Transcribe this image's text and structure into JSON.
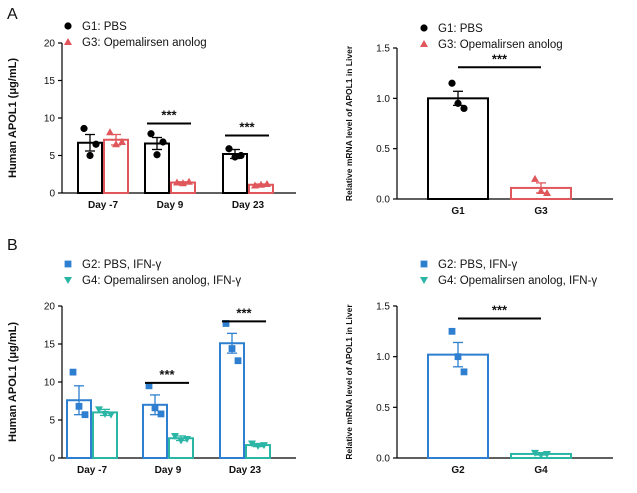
{
  "figure": {
    "panel_labels": [
      "A",
      "B"
    ]
  },
  "chart_data": [
    {
      "id": "A-left",
      "type": "bar",
      "ylabel": "Human APOL1 (μg/mL)",
      "ylim": [
        0,
        20
      ],
      "yticks": [
        0,
        5,
        10,
        15,
        20
      ],
      "categories": [
        "Day -7",
        "Day 9",
        "Day 23"
      ],
      "series": [
        {
          "name": "G1: PBS",
          "color": "#000000",
          "marker": "circle",
          "values": [
            6.7,
            6.6,
            5.2
          ],
          "errors": [
            1.1,
            0.8,
            0.6
          ],
          "points": [
            [
              8.6,
              5.0,
              6.5
            ],
            [
              7.9,
              5.1,
              6.8
            ],
            [
              5.9,
              4.8,
              5.0
            ]
          ]
        },
        {
          "name": "G3: Opemalirsen anolog",
          "color": "#e0575b",
          "marker": "triangle",
          "values": [
            7.1,
            1.4,
            1.1
          ],
          "errors": [
            0.7,
            0.1,
            0.1
          ],
          "points": [
            [
              8.1,
              6.5,
              6.8
            ],
            [
              1.4,
              1.3,
              1.5
            ],
            [
              1.0,
              1.1,
              1.2
            ]
          ]
        }
      ],
      "significance": [
        {
          "category": 1,
          "label": "***"
        },
        {
          "category": 2,
          "label": "***"
        }
      ],
      "legend": "top-left"
    },
    {
      "id": "A-right",
      "type": "bar",
      "ylabel": "Relative mRNA level of APOL1 in Liver",
      "ylim": [
        0,
        1.5
      ],
      "yticks": [
        "0.0",
        "0.5",
        "1.0",
        "1.5"
      ],
      "categories": [
        "G1",
        "G3"
      ],
      "series": [
        {
          "name": "G1: PBS",
          "color": "#000000",
          "marker": "circle",
          "values": [
            1.0,
            null
          ],
          "errors": [
            0.07,
            null
          ],
          "points": [
            [
              1.15,
              0.95,
              0.9
            ],
            null
          ]
        },
        {
          "name": "G3: Opemalirsen anolog",
          "color": "#e0575b",
          "marker": "triangle",
          "values": [
            null,
            0.11
          ],
          "errors": [
            null,
            0.05
          ],
          "points": [
            null,
            [
              0.2,
              0.08,
              0.06
            ]
          ]
        }
      ],
      "significance": [
        {
          "from": 0,
          "to": 1,
          "label": "***"
        }
      ],
      "legend": "top-left"
    },
    {
      "id": "B-left",
      "type": "bar",
      "ylabel": "Human APOL1 (μg/mL)",
      "ylim": [
        0,
        20
      ],
      "yticks": [
        0,
        5,
        10,
        15,
        20
      ],
      "categories": [
        "Day -7",
        "Day 9",
        "Day 23"
      ],
      "series": [
        {
          "name": "G2: PBS, IFN-γ",
          "color": "#2e7fd0",
          "marker": "square",
          "values": [
            7.6,
            7.0,
            15.1
          ],
          "errors": [
            1.9,
            1.3,
            1.3
          ],
          "points": [
            [
              11.3,
              6.8,
              5.7
            ],
            [
              9.5,
              6.6,
              5.8
            ],
            [
              17.7,
              14.4,
              12.8
            ]
          ]
        },
        {
          "name": "G4: Opemalirsen anolog, IFN-γ",
          "color": "#2bb5a5",
          "marker": "triangle-down",
          "values": [
            6.0,
            2.6,
            1.7
          ],
          "errors": [
            0.4,
            0.3,
            0.2
          ],
          "points": [
            [
              6.4,
              5.8,
              5.7
            ],
            [
              2.9,
              2.3,
              2.5
            ],
            [
              1.9,
              1.6,
              1.7
            ]
          ]
        }
      ],
      "significance": [
        {
          "category": 1,
          "label": "***"
        },
        {
          "category": 2,
          "label": "***"
        }
      ],
      "legend": "top-left"
    },
    {
      "id": "B-right",
      "type": "bar",
      "ylabel": "Relative mRNA level of APOL1 in Liver",
      "ylim": [
        0,
        1.5
      ],
      "yticks": [
        "0.0",
        "0.5",
        "1.0",
        "1.5"
      ],
      "categories": [
        "G2",
        "G4"
      ],
      "series": [
        {
          "name": "G2: PBS, IFN-γ",
          "color": "#2e7fd0",
          "marker": "square",
          "values": [
            1.02,
            null
          ],
          "errors": [
            0.12,
            null
          ],
          "points": [
            [
              1.25,
              1.0,
              0.85
            ],
            null
          ]
        },
        {
          "name": "G4: Opemalirsen anolog, IFN-γ",
          "color": "#2bb5a5",
          "marker": "triangle-down",
          "values": [
            null,
            0.04
          ],
          "errors": [
            null,
            0.01
          ],
          "points": [
            null,
            [
              0.05,
              0.03,
              0.04
            ]
          ]
        }
      ],
      "significance": [
        {
          "from": 0,
          "to": 1,
          "label": "***"
        }
      ],
      "legend": "top-left"
    }
  ]
}
